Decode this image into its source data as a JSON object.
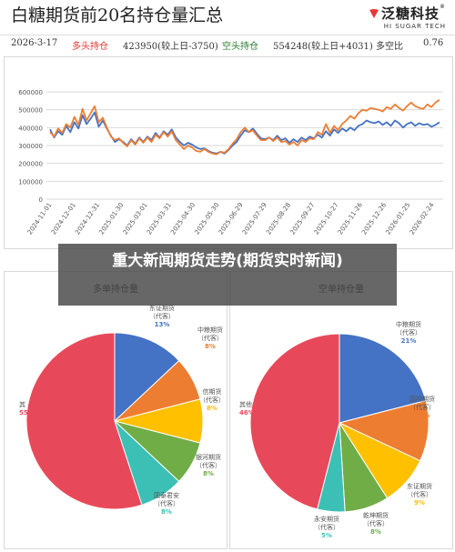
{
  "header": {
    "title": "白糖期货前20名持仓量汇总",
    "logo_text": "泛糖科技",
    "logo_sub": "HI SUGAR TECH",
    "logo_mark": "®"
  },
  "info": {
    "date": "2026-3-17",
    "long_label": "多头持仓",
    "long_value": "423950(较上日-3750)",
    "short_label": "空头持仓",
    "short_value": "554248(较上日+4031)",
    "ratio_label": "多空比",
    "ratio_value": "0.76"
  },
  "banner": {
    "text": "重大新闻期货走势(期货实时新闻)"
  },
  "colors": {
    "long_line": "#4472c4",
    "short_line": "#ed7d31",
    "blue": "#4472c4",
    "orange": "#ed7d31",
    "yellow": "#ffc000",
    "green": "#70ad47",
    "teal": "#3cc0b5",
    "red": "#e8495a"
  },
  "chart_data": [
    {
      "type": "line",
      "x_tick_labels": [
        "2024-11-01",
        "2024-12-01",
        "2024-12-31",
        "2025-01-30",
        "2025-03-01",
        "2025-03-31",
        "2025-04-30",
        "2025-05-30",
        "2025-06-29",
        "2025-07-29",
        "2025-08-28",
        "2025-09-27",
        "2025-10-27",
        "2025-11-26",
        "2025-12-26",
        "2026-01-25",
        "2026-02-24"
      ],
      "ylim": [
        0,
        600000
      ],
      "y_ticks": [
        0,
        100000,
        200000,
        300000,
        400000,
        500000,
        600000
      ],
      "grid": true,
      "series": [
        {
          "color_key": "long_line",
          "values": [
            390000,
            345000,
            380000,
            360000,
            410000,
            375000,
            430000,
            395000,
            470000,
            420000,
            450000,
            485000,
            405000,
            440000,
            395000,
            355000,
            320000,
            335000,
            320000,
            300000,
            335000,
            310000,
            345000,
            320000,
            350000,
            330000,
            370000,
            345000,
            380000,
            360000,
            390000,
            345000,
            320000,
            300000,
            315000,
            305000,
            290000,
            280000,
            285000,
            270000,
            260000,
            255000,
            265000,
            255000,
            275000,
            300000,
            320000,
            355000,
            385000,
            375000,
            395000,
            365000,
            340000,
            335000,
            345000,
            330000,
            355000,
            330000,
            340000,
            315000,
            335000,
            320000,
            345000,
            330000,
            350000,
            340000,
            360000,
            345000,
            380000,
            355000,
            390000,
            370000,
            395000,
            380000,
            400000,
            385000,
            410000,
            420000,
            440000,
            430000,
            425000,
            435000,
            415000,
            430000,
            410000,
            440000,
            425000,
            400000,
            420000,
            430000,
            410000,
            425000,
            415000,
            420000,
            405000,
            415000,
            430000
          ]
        },
        {
          "color_key": "short_line",
          "values": [
            375000,
            350000,
            395000,
            370000,
            420000,
            400000,
            460000,
            415000,
            505000,
            440000,
            480000,
            520000,
            430000,
            455000,
            400000,
            350000,
            330000,
            340000,
            315000,
            295000,
            330000,
            305000,
            340000,
            315000,
            345000,
            320000,
            360000,
            340000,
            375000,
            350000,
            380000,
            330000,
            305000,
            280000,
            300000,
            290000,
            270000,
            265000,
            280000,
            265000,
            255000,
            250000,
            265000,
            260000,
            280000,
            310000,
            335000,
            375000,
            400000,
            375000,
            385000,
            355000,
            330000,
            330000,
            345000,
            325000,
            345000,
            320000,
            325000,
            305000,
            320000,
            300000,
            330000,
            320000,
            340000,
            335000,
            375000,
            360000,
            420000,
            370000,
            410000,
            385000,
            420000,
            440000,
            465000,
            450000,
            480000,
            500000,
            495000,
            510000,
            505000,
            500000,
            490000,
            515000,
            505000,
            530000,
            510000,
            495000,
            520000,
            540000,
            520000,
            510000,
            505000,
            530000,
            515000,
            540000,
            555000
          ]
        }
      ]
    },
    {
      "type": "pie",
      "title": "多单持仓量",
      "slices": [
        {
          "name": "东证期货",
          "sub": "（代客）",
          "value": 13,
          "color_key": "blue"
        },
        {
          "name": "中粮期货",
          "sub": "（代客）",
          "value": 8,
          "color_key": "orange"
        },
        {
          "name": "中信期货",
          "sub": "（代客）",
          "value": 8,
          "color_key": "yellow",
          "label_display": "信期货|（代客）|8%"
        },
        {
          "name": "银河期货",
          "sub": "（代客）",
          "value": 8,
          "color_key": "green"
        },
        {
          "name": "国泰君安",
          "sub": "（代客）",
          "value": 8,
          "color_key": "teal",
          "label_display": "国泰君安|（代客）|8%"
        },
        {
          "name": "其他",
          "sub": "",
          "value": 55,
          "color_key": "red",
          "label_display": "其|55"
        }
      ]
    },
    {
      "type": "pie",
      "title": "空单持仓量",
      "slices": [
        {
          "name": "中粮期货",
          "sub": "（代客）",
          "value": 21,
          "color_key": "blue"
        },
        {
          "name": "国投期货",
          "sub": "（代客）",
          "value": 11,
          "color_key": "orange",
          "label_display": "国投期货|（代客）|11%"
        },
        {
          "name": "东证期货",
          "sub": "（代客）",
          "value": 9,
          "color_key": "yellow"
        },
        {
          "name": "乾坤期货",
          "sub": "（代客）",
          "value": 8,
          "color_key": "green"
        },
        {
          "name": "永安期货",
          "sub": "（代客）",
          "value": 5,
          "color_key": "teal"
        },
        {
          "name": "其他",
          "sub": "",
          "value": 46,
          "color_key": "red"
        }
      ]
    }
  ]
}
